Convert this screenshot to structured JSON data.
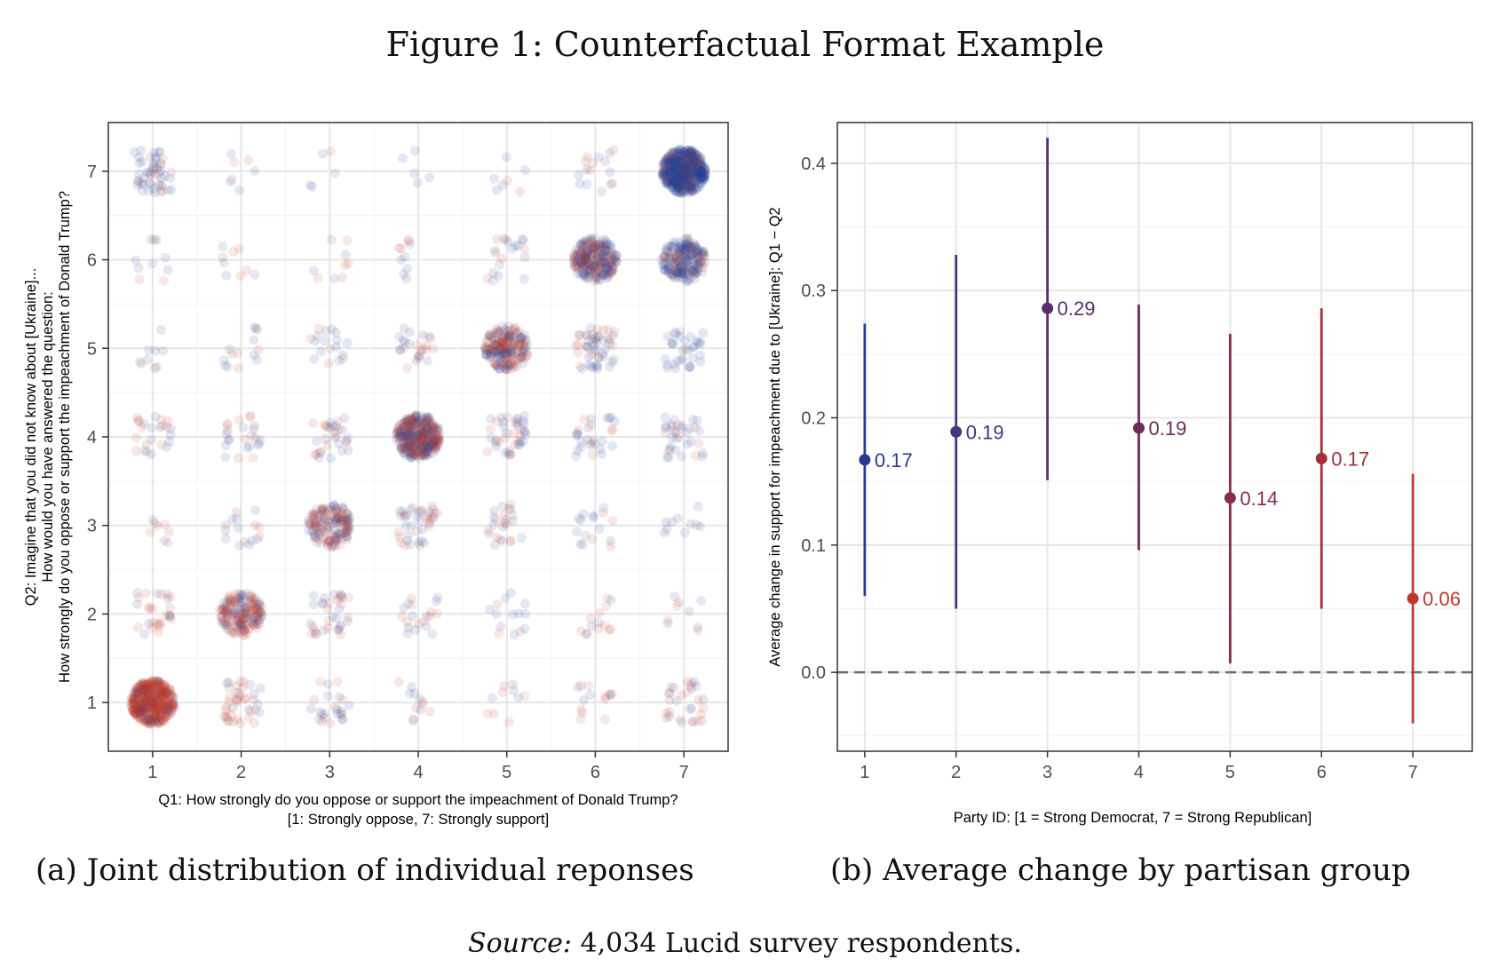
{
  "figure": {
    "title": "Figure 1: Counterfactual Format Example",
    "caption_a": "(a) Joint distribution of individual reponses",
    "caption_b": "(b) Average change by partisan group",
    "source_label": "Source:",
    "source_text": " 4,034 Lucid survey respondents."
  },
  "chart_data": [
    {
      "type": "scatter",
      "subtype": "jittered-count-grid",
      "xlabel_lines": [
        "Q1: How strongly do you oppose or support the impeachment of Donald Trump?",
        "[1: Strongly oppose, 7: Strongly support]"
      ],
      "ylabel_lines": [
        "Q2: Imagine that you did not know about [Ukraine]...",
        "How would you have answered the question:",
        "How strongly do you oppose or support the impeachment of Donald Trump?"
      ],
      "x_ticks": [
        "1",
        "2",
        "3",
        "4",
        "5",
        "6",
        "7"
      ],
      "y_ticks": [
        "1",
        "2",
        "3",
        "4",
        "5",
        "6",
        "7"
      ],
      "xlim": [
        0.5,
        7.5
      ],
      "ylim": [
        0.45,
        7.55
      ],
      "grid": true,
      "point_colors": {
        "democrat": "#2c3e91",
        "republican": "#c0392b"
      },
      "point_opacity": 0.12,
      "cells": [
        {
          "q1": 1,
          "q2": 1,
          "n": 420,
          "rep_share": 0.9
        },
        {
          "q1": 2,
          "q2": 1,
          "n": 40,
          "rep_share": 0.75
        },
        {
          "q1": 3,
          "q2": 1,
          "n": 24,
          "rep_share": 0.4
        },
        {
          "q1": 4,
          "q2": 1,
          "n": 12,
          "rep_share": 0.5
        },
        {
          "q1": 5,
          "q2": 1,
          "n": 10,
          "rep_share": 0.4
        },
        {
          "q1": 6,
          "q2": 1,
          "n": 14,
          "rep_share": 0.6
        },
        {
          "q1": 7,
          "q2": 1,
          "n": 30,
          "rep_share": 0.55
        },
        {
          "q1": 1,
          "q2": 2,
          "n": 28,
          "rep_share": 0.6
        },
        {
          "q1": 2,
          "q2": 2,
          "n": 170,
          "rep_share": 0.7
        },
        {
          "q1": 3,
          "q2": 2,
          "n": 34,
          "rep_share": 0.5
        },
        {
          "q1": 4,
          "q2": 2,
          "n": 20,
          "rep_share": 0.5
        },
        {
          "q1": 5,
          "q2": 2,
          "n": 14,
          "rep_share": 0.45
        },
        {
          "q1": 6,
          "q2": 2,
          "n": 14,
          "rep_share": 0.55
        },
        {
          "q1": 7,
          "q2": 2,
          "n": 9,
          "rep_share": 0.5
        },
        {
          "q1": 1,
          "q2": 3,
          "n": 8,
          "rep_share": 0.4
        },
        {
          "q1": 2,
          "q2": 3,
          "n": 16,
          "rep_share": 0.35
        },
        {
          "q1": 3,
          "q2": 3,
          "n": 150,
          "rep_share": 0.55
        },
        {
          "q1": 4,
          "q2": 3,
          "n": 40,
          "rep_share": 0.5
        },
        {
          "q1": 5,
          "q2": 3,
          "n": 24,
          "rep_share": 0.45
        },
        {
          "q1": 6,
          "q2": 3,
          "n": 16,
          "rep_share": 0.35
        },
        {
          "q1": 7,
          "q2": 3,
          "n": 10,
          "rep_share": 0.3
        },
        {
          "q1": 1,
          "q2": 4,
          "n": 24,
          "rep_share": 0.5
        },
        {
          "q1": 2,
          "q2": 4,
          "n": 24,
          "rep_share": 0.5
        },
        {
          "q1": 3,
          "q2": 4,
          "n": 30,
          "rep_share": 0.5
        },
        {
          "q1": 4,
          "q2": 4,
          "n": 330,
          "rep_share": 0.5
        },
        {
          "q1": 5,
          "q2": 4,
          "n": 40,
          "rep_share": 0.45
        },
        {
          "q1": 6,
          "q2": 4,
          "n": 28,
          "rep_share": 0.4
        },
        {
          "q1": 7,
          "q2": 4,
          "n": 34,
          "rep_share": 0.35
        },
        {
          "q1": 1,
          "q2": 5,
          "n": 9,
          "rep_share": 0.45
        },
        {
          "q1": 2,
          "q2": 5,
          "n": 14,
          "rep_share": 0.5
        },
        {
          "q1": 3,
          "q2": 5,
          "n": 18,
          "rep_share": 0.4
        },
        {
          "q1": 4,
          "q2": 5,
          "n": 24,
          "rep_share": 0.45
        },
        {
          "q1": 5,
          "q2": 5,
          "n": 200,
          "rep_share": 0.55
        },
        {
          "q1": 6,
          "q2": 5,
          "n": 50,
          "rep_share": 0.35
        },
        {
          "q1": 7,
          "q2": 5,
          "n": 34,
          "rep_share": 0.2
        },
        {
          "q1": 1,
          "q2": 6,
          "n": 10,
          "rep_share": 0.4
        },
        {
          "q1": 2,
          "q2": 6,
          "n": 9,
          "rep_share": 0.4
        },
        {
          "q1": 3,
          "q2": 6,
          "n": 9,
          "rep_share": 0.35
        },
        {
          "q1": 4,
          "q2": 6,
          "n": 10,
          "rep_share": 0.4
        },
        {
          "q1": 5,
          "q2": 6,
          "n": 20,
          "rep_share": 0.4
        },
        {
          "q1": 6,
          "q2": 6,
          "n": 240,
          "rep_share": 0.4
        },
        {
          "q1": 7,
          "q2": 6,
          "n": 200,
          "rep_share": 0.25
        },
        {
          "q1": 1,
          "q2": 7,
          "n": 50,
          "rep_share": 0.3
        },
        {
          "q1": 2,
          "q2": 7,
          "n": 7,
          "rep_share": 0.5
        },
        {
          "q1": 3,
          "q2": 7,
          "n": 5,
          "rep_share": 0.4
        },
        {
          "q1": 4,
          "q2": 7,
          "n": 5,
          "rep_share": 0.4
        },
        {
          "q1": 5,
          "q2": 7,
          "n": 7,
          "rep_share": 0.4
        },
        {
          "q1": 6,
          "q2": 7,
          "n": 16,
          "rep_share": 0.3
        },
        {
          "q1": 7,
          "q2": 7,
          "n": 520,
          "rep_share": 0.1
        }
      ]
    },
    {
      "type": "scatter",
      "subtype": "point-with-error-bars",
      "xlabel": "Party ID: [1 = Strong Democrat, 7 = Strong Republican]",
      "ylabel": "Average change in support for impeachment due to [Ukraine]: Q1 − Q2",
      "x": [
        1,
        2,
        3,
        4,
        5,
        6,
        7
      ],
      "x_ticks": [
        "1",
        "2",
        "3",
        "4",
        "5",
        "6",
        "7"
      ],
      "y_ticks": [
        "0.0",
        "0.1",
        "0.2",
        "0.3",
        "0.4"
      ],
      "y_tick_values": [
        0.0,
        0.1,
        0.2,
        0.3,
        0.4
      ],
      "xlim": [
        0.7,
        7.65
      ],
      "ylim": [
        -0.062,
        0.432
      ],
      "grid": true,
      "reference_line": {
        "y": 0.0,
        "style": "dashed"
      },
      "points": [
        {
          "x": 1,
          "y": 0.167,
          "label": "0.17",
          "lo": 0.06,
          "hi": 0.274,
          "color": "#2a3b8f"
        },
        {
          "x": 2,
          "y": 0.189,
          "label": "0.19",
          "lo": 0.05,
          "hi": 0.328,
          "color": "#3f3780"
        },
        {
          "x": 3,
          "y": 0.286,
          "label": "0.29",
          "lo": 0.151,
          "hi": 0.42,
          "color": "#5a2d6e"
        },
        {
          "x": 4,
          "y": 0.192,
          "label": "0.19",
          "lo": 0.096,
          "hi": 0.289,
          "color": "#6e2b58"
        },
        {
          "x": 5,
          "y": 0.137,
          "label": "0.14",
          "lo": 0.007,
          "hi": 0.266,
          "color": "#8a2b45"
        },
        {
          "x": 6,
          "y": 0.168,
          "label": "0.17",
          "lo": 0.05,
          "hi": 0.286,
          "color": "#a32f3a"
        },
        {
          "x": 7,
          "y": 0.058,
          "label": "0.06",
          "lo": -0.04,
          "hi": 0.156,
          "color": "#c2372c"
        }
      ]
    }
  ]
}
